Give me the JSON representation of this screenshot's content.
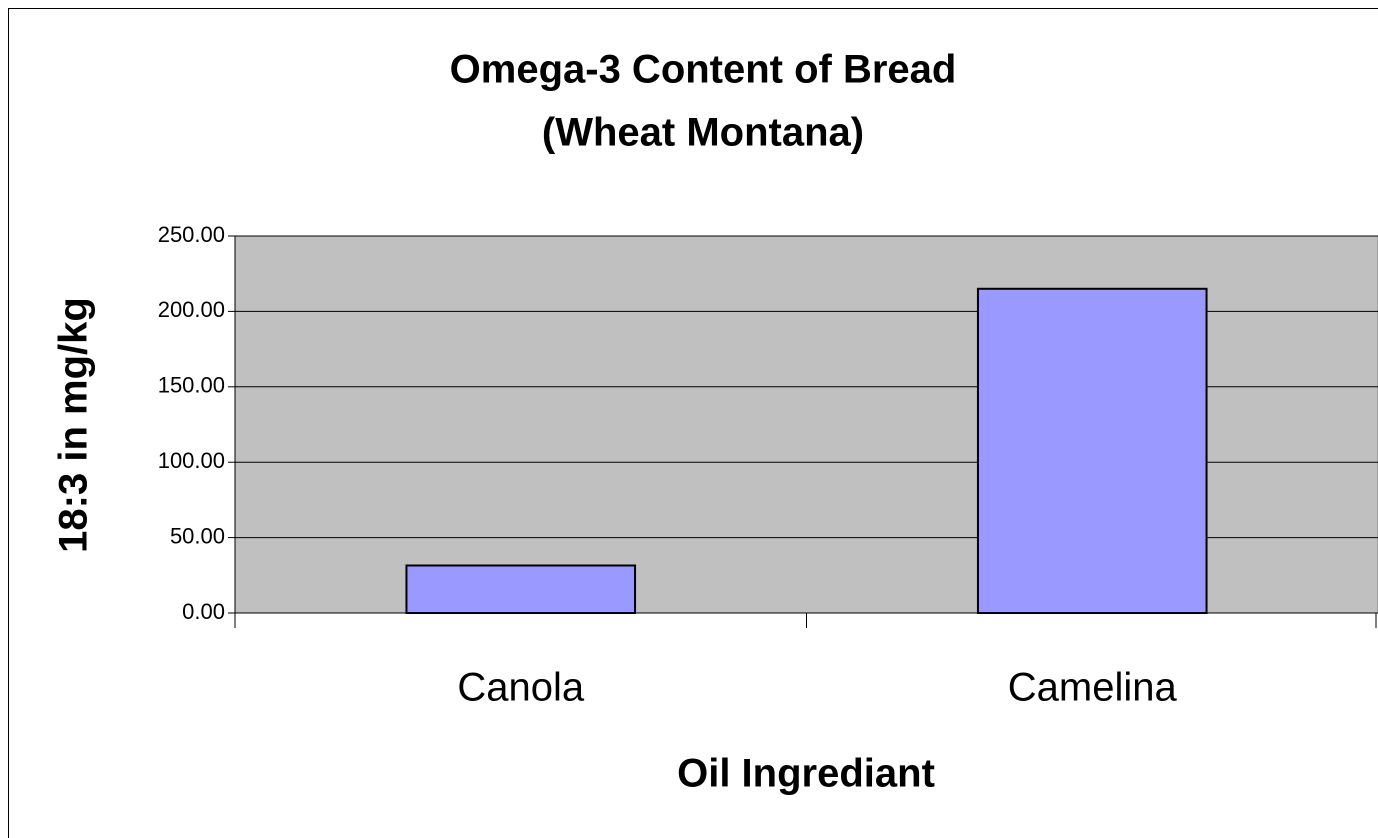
{
  "chart_data": {
    "type": "bar",
    "title": [
      "Omega-3 Content of Bread",
      "(Wheat Montana)"
    ],
    "x_label": "Oil Ingrediant",
    "y_label": "18:3 in mg/kg",
    "categories": [
      "Canola",
      "Camelina"
    ],
    "values": [
      31.5,
      215
    ],
    "color": "#9999ff",
    "ylim": [
      0,
      250
    ],
    "yticks": [
      {
        "value": 0,
        "label": "0.00"
      },
      {
        "value": 50,
        "label": "50.00"
      },
      {
        "value": 100,
        "label": "100.00"
      },
      {
        "value": 150,
        "label": "150.00"
      },
      {
        "value": 200,
        "label": "200.00"
      },
      {
        "value": 250,
        "label": "250.00"
      }
    ],
    "grid": true
  }
}
